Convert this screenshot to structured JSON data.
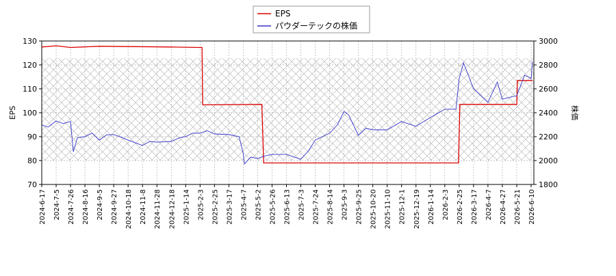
{
  "chart_data": {
    "type": "line",
    "ylabel": "EPS",
    "y2label": "株価",
    "xticks": [
      "2024-6-17",
      "2024-7-5",
      "2024-7-26",
      "2024-8-16",
      "2024-9-5",
      "2024-9-27",
      "2024-10-18",
      "2024-11-8",
      "2024-11-28",
      "2024-12-18",
      "2025-1-14",
      "2025-2-3",
      "2025-2-25",
      "2025-3-17",
      "2025-4-7",
      "2025-5-2",
      "2025-5-26",
      "2025-6-13",
      "2025-7-3",
      "2025-7-24",
      "2025-8-14",
      "2025-9-3",
      "2025-9-25",
      "2025-10-20",
      "2025-11-10",
      "2025-12-1",
      "2025-12-19",
      "2026-1-14",
      "2026-2-3",
      "2026-2-25",
      "2026-3-17",
      "2026-4-7",
      "2026-4-27",
      "2026-5-21",
      "2026-6-10"
    ],
    "ylim": [
      70,
      130
    ],
    "yticks": [
      70,
      80,
      90,
      100,
      110,
      120,
      130
    ],
    "y2lim": [
      1800,
      3000
    ],
    "y2ticks": [
      1800,
      2000,
      2200,
      2400,
      2600,
      2800,
      3000
    ],
    "grid": true,
    "legend": "top",
    "series": [
      {
        "name": "EPS",
        "color": "#dd0000",
        "x": [
          "2024-6-17",
          "2024-7-5",
          "2024-7-26",
          "2024-9-5",
          "2024-12-18",
          "2025-2-3",
          "2025-2-6",
          "2025-2-7",
          "2025-5-9",
          "2025-5-12",
          "2025-8-14",
          "2026-2-24",
          "2026-2-26",
          "2026-5-21",
          "2026-5-22",
          "2026-6-12"
        ],
        "values": [
          127.5,
          128,
          127.3,
          127.8,
          127.5,
          127.3,
          127.3,
          103.3,
          103.5,
          79,
          79,
          79,
          103.5,
          103.5,
          113.5,
          113.5
        ]
      },
      {
        "name": "パウダーテックの株価",
        "color": "#3333cc",
        "axis": "y2",
        "x": [
          "2024-6-17",
          "2024-6-25",
          "2024-7-5",
          "2024-7-15",
          "2024-7-26",
          "2024-7-30",
          "2024-8-5",
          "2024-8-16",
          "2024-8-26",
          "2024-9-5",
          "2024-9-16",
          "2024-9-27",
          "2024-10-8",
          "2024-10-18",
          "2024-10-28",
          "2024-11-8",
          "2024-11-18",
          "2024-11-28",
          "2024-12-18",
          "2025-1-2",
          "2025-1-14",
          "2025-1-24",
          "2025-2-3",
          "2025-2-14",
          "2025-2-25",
          "2025-3-17",
          "2025-4-1",
          "2025-4-7",
          "2025-4-9",
          "2025-4-20",
          "2025-5-2",
          "2025-5-15",
          "2025-5-26",
          "2025-6-13",
          "2025-7-3",
          "2025-7-14",
          "2025-7-24",
          "2025-8-14",
          "2025-8-25",
          "2025-9-3",
          "2025-9-10",
          "2025-9-25",
          "2025-10-8",
          "2025-10-20",
          "2025-11-10",
          "2025-12-1",
          "2025-12-19",
          "2026-1-14",
          "2026-2-3",
          "2026-2-20",
          "2026-2-25",
          "2026-3-3",
          "2026-3-17",
          "2026-4-7",
          "2026-4-20",
          "2026-4-27",
          "2026-5-21",
          "2026-6-1",
          "2026-6-10",
          "2026-6-12"
        ],
        "values": [
          2297,
          2280,
          2331,
          2310,
          2326,
          2074,
          2190,
          2200,
          2230,
          2171,
          2215,
          2217,
          2195,
          2171,
          2150,
          2126,
          2160,
          2154,
          2160,
          2190,
          2200,
          2230,
          2229,
          2250,
          2223,
          2217,
          2200,
          2057,
          1971,
          2029,
          2017,
          2040,
          2051,
          2051,
          2011,
          2080,
          2171,
          2229,
          2300,
          2411,
          2383,
          2211,
          2270,
          2257,
          2257,
          2326,
          2286,
          2360,
          2429,
          2429,
          2686,
          2817,
          2600,
          2486,
          2657,
          2514,
          2543,
          2714,
          2686,
          2829
        ]
      }
    ]
  }
}
